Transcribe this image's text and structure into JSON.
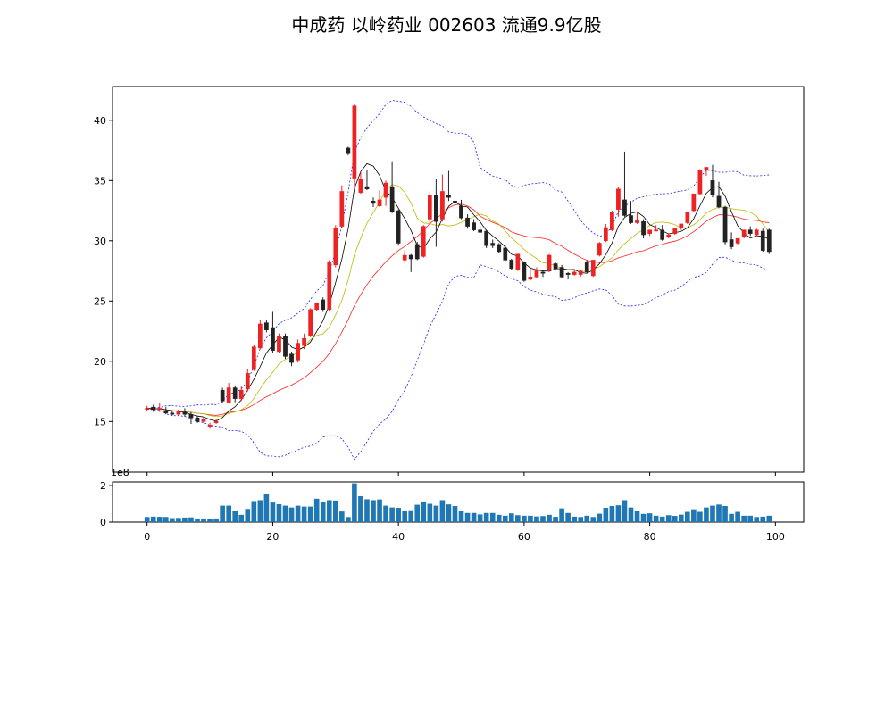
{
  "chart_data": {
    "type": "candlestick",
    "title": "中成药 以岭药业 002603 流通9.9亿股",
    "colors": {
      "up": "#ee2222",
      "down": "#222222",
      "ma_short": "#000000",
      "ma_mid": "#bbbb00",
      "ma_long": "#ff2222",
      "boll": "#2222ee",
      "volume": "#1f77b4"
    },
    "x": {
      "ticks": [
        0,
        20,
        40,
        60,
        80,
        100
      ],
      "range": [
        -5.5,
        104.5
      ]
    },
    "price_axis": {
      "ticks": [
        15,
        20,
        25,
        30,
        35,
        40
      ],
      "range": [
        10.8,
        42.8
      ],
      "grid": false
    },
    "volume_axis": {
      "ticks": [
        0,
        2
      ],
      "range": [
        0,
        2.2
      ],
      "offset_text": "1e8"
    },
    "closes": [
      16.1,
      16.0,
      16.1,
      15.7,
      15.6,
      15.8,
      15.6,
      15.3,
      15.0,
      15.2,
      14.7,
      15.0,
      16.7,
      17.8,
      16.9,
      17.6,
      19.0,
      21.2,
      23.1,
      22.6,
      20.9,
      22.1,
      20.4,
      19.9,
      21.5,
      21.9,
      24.3,
      24.8,
      24.3,
      28.2,
      31.0,
      34.1,
      37.3,
      41.2,
      35.1,
      34.3,
      33.1,
      33.4,
      34.8,
      32.4,
      29.8,
      28.8,
      28.5,
      28.5,
      31.2,
      33.8,
      31.6,
      34.1,
      33.6,
      33.2,
      31.9,
      31.2,
      30.9,
      30.7,
      29.6,
      29.6,
      29.1,
      28.4,
      27.7,
      28.9,
      26.7,
      27.0,
      27.6,
      27.3,
      28.8,
      27.7,
      27.0,
      27.2,
      27.4,
      27.5,
      27.4,
      28.4,
      29.8,
      31.1,
      32.4,
      34.3,
      32.1,
      31.5,
      31.7,
      30.5,
      30.9,
      30.9,
      30.1,
      30.5,
      31.0,
      31.4,
      32.4,
      33.9,
      35.9,
      36.1,
      33.8,
      32.8,
      29.9,
      29.5,
      30.2,
      30.9,
      30.6,
      30.9,
      29.2,
      29.1
    ],
    "opens": [
      16.0,
      16.2,
      16.0,
      15.9,
      15.7,
      15.6,
      15.8,
      15.6,
      15.3,
      15.0,
      14.6,
      14.9,
      17.6,
      16.6,
      17.8,
      16.9,
      17.7,
      19.3,
      21.1,
      23.2,
      22.8,
      20.8,
      22.1,
      20.6,
      20.1,
      21.3,
      22.1,
      24.3,
      25.1,
      24.3,
      28.0,
      31.2,
      37.7,
      35.2,
      34.0,
      34.5,
      33.3,
      32.9,
      33.6,
      34.5,
      32.5,
      28.4,
      28.8,
      29.7,
      28.7,
      31.8,
      33.8,
      31.8,
      33.8,
      33.3,
      32.9,
      31.9,
      31.5,
      30.9,
      30.8,
      29.8,
      29.7,
      29.4,
      28.4,
      27.6,
      28.2,
      26.8,
      27.0,
      27.4,
      27.6,
      28.1,
      27.8,
      27.3,
      27.2,
      27.2,
      28.2,
      27.1,
      28.8,
      30.0,
      30.9,
      32.6,
      33.4,
      32.1,
      31.5,
      31.6,
      30.6,
      30.8,
      30.9,
      30.3,
      30.6,
      31.1,
      31.5,
      32.5,
      33.9,
      35.9,
      35.0,
      33.7,
      32.8,
      30.1,
      29.8,
      30.3,
      30.9,
      30.5,
      30.8,
      30.9
    ],
    "highs": [
      16.3,
      16.4,
      16.5,
      16.2,
      15.9,
      16.0,
      16.1,
      15.8,
      15.5,
      15.4,
      14.9,
      15.2,
      17.8,
      18.2,
      18.0,
      17.9,
      19.4,
      21.4,
      23.4,
      23.4,
      24.1,
      22.3,
      22.3,
      20.8,
      21.8,
      22.3,
      24.4,
      24.9,
      25.3,
      28.4,
      31.3,
      34.6,
      37.8,
      41.4,
      35.7,
      35.9,
      33.6,
      34.2,
      35.0,
      36.6,
      32.6,
      29.2,
      28.9,
      29.9,
      31.3,
      34.1,
      35.1,
      35.5,
      35.8,
      33.7,
      33.4,
      32.2,
      31.8,
      31.2,
      30.9,
      30.1,
      29.8,
      29.6,
      28.5,
      28.9,
      28.3,
      27.8,
      27.8,
      27.6,
      28.9,
      28.2,
      28.0,
      27.4,
      27.6,
      27.6,
      28.4,
      28.4,
      29.9,
      31.4,
      32.5,
      34.5,
      37.4,
      33.3,
      32.4,
      31.8,
      30.9,
      31.3,
      31.3,
      30.6,
      30.7,
      31.4,
      31.6,
      32.6,
      34.0,
      36.1,
      36.3,
      34.9,
      32.9,
      30.7,
      30.2,
      30.9,
      31.2,
      31.0,
      31.0,
      31.0
    ],
    "lows": [
      15.9,
      15.8,
      15.8,
      15.6,
      15.5,
      15.5,
      15.4,
      14.8,
      14.9,
      14.9,
      14.4,
      14.8,
      16.5,
      16.5,
      16.6,
      16.7,
      17.5,
      19.2,
      21.0,
      22.4,
      20.7,
      20.7,
      20.2,
      19.6,
      19.9,
      21.0,
      22.0,
      24.2,
      24.1,
      24.2,
      27.8,
      31.0,
      37.1,
      34.3,
      33.9,
      34.2,
      32.8,
      32.8,
      32.9,
      32.3,
      29.6,
      28.2,
      27.4,
      28.4,
      28.6,
      31.4,
      29.5,
      31.6,
      33.3,
      33.1,
      31.8,
      31.0,
      30.8,
      30.6,
      29.4,
      29.4,
      29.0,
      28.3,
      27.6,
      27.5,
      26.6,
      26.7,
      26.9,
      27.0,
      27.4,
      27.6,
      26.9,
      26.8,
      27.1,
      27.0,
      27.3,
      27.0,
      28.7,
      29.9,
      30.8,
      32.0,
      32.0,
      31.4,
      31.4,
      30.2,
      30.4,
      30.8,
      30.0,
      30.2,
      30.5,
      30.9,
      31.4,
      32.4,
      33.8,
      35.4,
      33.6,
      32.7,
      29.7,
      29.3,
      29.7,
      30.2,
      30.4,
      30.4,
      29.1,
      28.9
    ],
    "volume": [
      0.28,
      0.3,
      0.29,
      0.28,
      0.22,
      0.23,
      0.25,
      0.26,
      0.2,
      0.2,
      0.18,
      0.2,
      0.9,
      0.9,
      0.6,
      0.4,
      0.72,
      1.15,
      1.2,
      1.55,
      1.07,
      0.98,
      0.9,
      0.8,
      0.9,
      0.85,
      0.85,
      1.28,
      1.1,
      1.2,
      1.18,
      0.58,
      0.28,
      2.12,
      1.42,
      1.25,
      1.2,
      1.24,
      0.9,
      0.8,
      0.78,
      0.64,
      0.65,
      0.95,
      1.13,
      1.0,
      0.9,
      1.2,
      0.97,
      0.88,
      0.62,
      0.5,
      0.5,
      0.42,
      0.5,
      0.5,
      0.4,
      0.35,
      0.48,
      0.38,
      0.35,
      0.35,
      0.31,
      0.33,
      0.4,
      0.29,
      0.75,
      0.5,
      0.3,
      0.28,
      0.35,
      0.28,
      0.46,
      0.78,
      0.88,
      0.92,
      1.2,
      0.8,
      0.6,
      0.45,
      0.48,
      0.35,
      0.3,
      0.38,
      0.34,
      0.41,
      0.56,
      0.7,
      0.56,
      0.8,
      0.9,
      0.96,
      0.88,
      0.45,
      0.56,
      0.35,
      0.35,
      0.28,
      0.3,
      0.35
    ]
  }
}
